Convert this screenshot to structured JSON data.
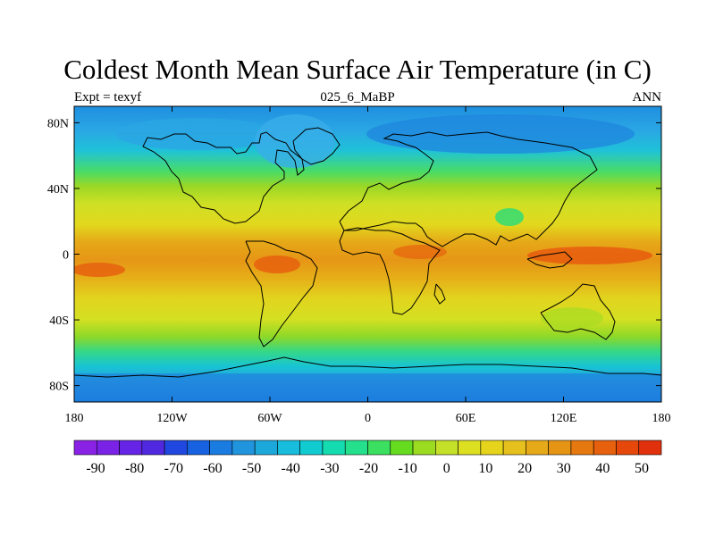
{
  "title": "Coldest Month Mean Surface Air Temperature (in C)",
  "subtitle_left": "Expt = texyf",
  "subtitle_center": "025_6_MaBP",
  "subtitle_right": "ANN",
  "map": {
    "lon_ticks": [
      "180",
      "120W",
      "60W",
      "0",
      "60E",
      "120E",
      "180"
    ],
    "lon_values": [
      -180,
      -120,
      -60,
      0,
      60,
      120,
      180
    ],
    "lat_ticks": [
      "80N",
      "40N",
      "0",
      "40S",
      "80S"
    ],
    "lat_values": [
      80,
      40,
      0,
      -40,
      -80
    ],
    "lon_range": [
      -180,
      180
    ],
    "lat_range": [
      -90,
      90
    ]
  },
  "colorbar": {
    "labels": [
      "-90",
      "-80",
      "-70",
      "-60",
      "-50",
      "-40",
      "-30",
      "-20",
      "-10",
      "0",
      "10",
      "20",
      "30",
      "40",
      "50"
    ],
    "colors": [
      "#8a22e6",
      "#7a22e6",
      "#6624e6",
      "#4f28e0",
      "#2048e0",
      "#1662e0",
      "#1a7ce0",
      "#2094dc",
      "#1da8dc",
      "#18bcdc",
      "#10ccd0",
      "#14dcb0",
      "#24e08c",
      "#3ce060",
      "#66dc20",
      "#9cdc20",
      "#c4e028",
      "#dce020",
      "#e6d41c",
      "#e6c01c",
      "#e6aa18",
      "#e69414",
      "#e67810",
      "#e6600e",
      "#e6480c",
      "#e0300c"
    ]
  }
}
